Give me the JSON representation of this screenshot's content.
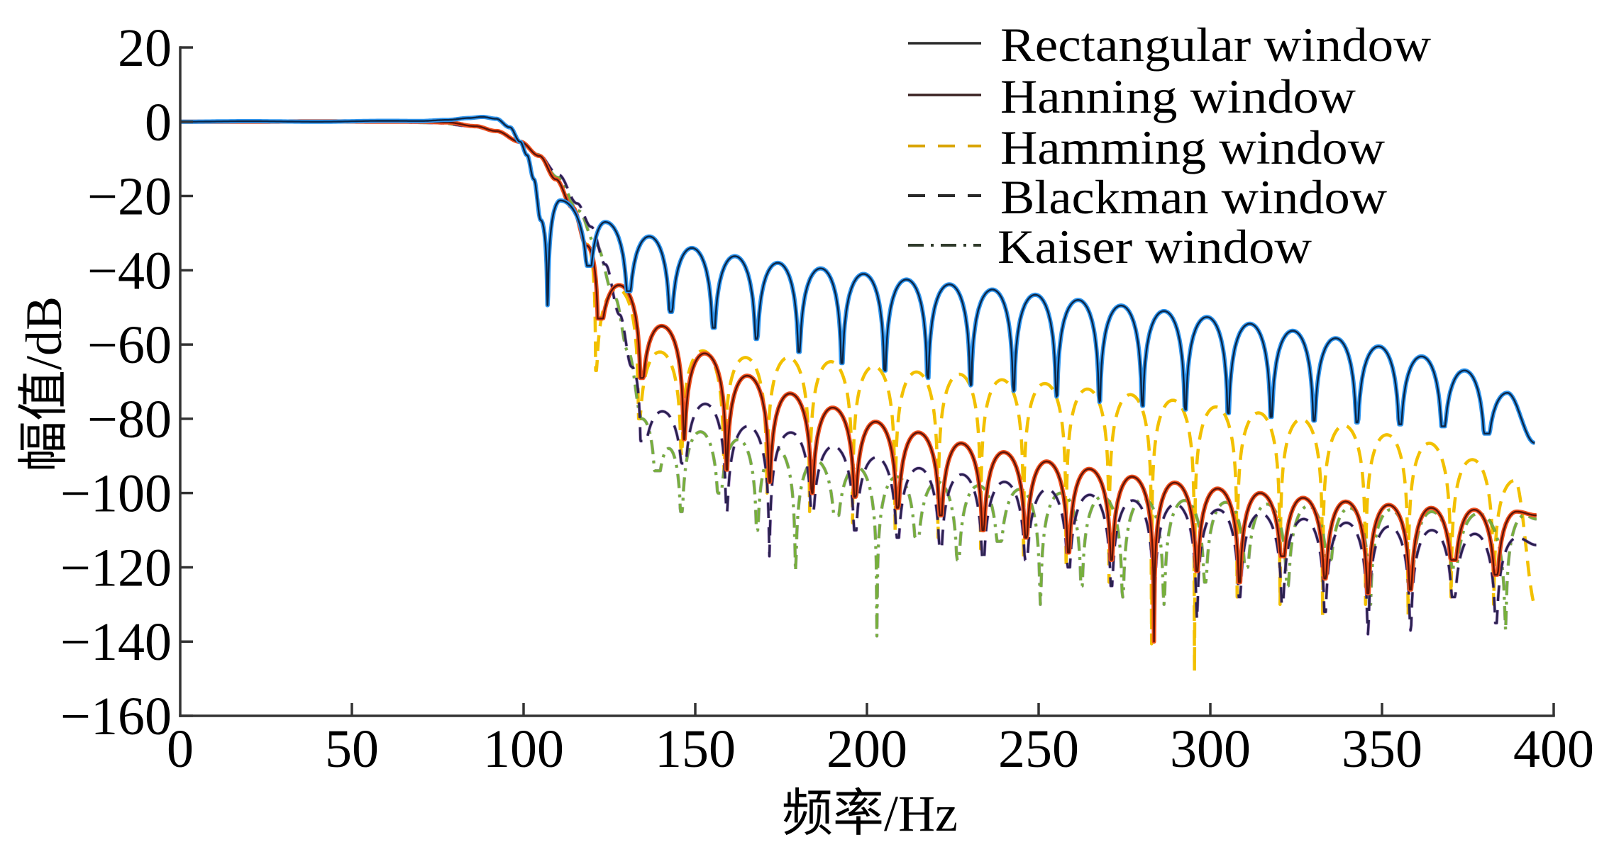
{
  "chart_data": {
    "type": "line",
    "xlabel": "频率/Hz",
    "ylabel": "幅值/dB",
    "xlim": [
      0,
      400
    ],
    "ylim": [
      -160,
      20
    ],
    "xticks": [
      0,
      50,
      100,
      150,
      200,
      250,
      300,
      350,
      400
    ],
    "xticklabels": [
      "0",
      "50",
      "100",
      "150",
      "200",
      "250",
      "300",
      "350",
      "400"
    ],
    "yticks": [
      20,
      0,
      -20,
      -40,
      -60,
      -80,
      -100,
      -120,
      -140,
      -160
    ],
    "yticklabels": [
      "20",
      "0",
      "−20",
      "−40",
      "−60",
      "−80",
      "−100",
      "−120",
      "−140",
      "−160"
    ],
    "grid": false,
    "legend_position": "top-right",
    "series": [
      {
        "name": "Rectangular window",
        "color": "#2f95ee",
        "core_color": "#0b2545",
        "legend_color": "#2a2a2a",
        "x": [
          0,
          20,
          40,
          60,
          70,
          78,
          84,
          88,
          92,
          96,
          99,
          101,
          103,
          105,
          107,
          110.7,
          119.0,
          123.8,
          130.5,
          136.6,
          142.8,
          149.0,
          155.3,
          161.5,
          167.8,
          174.0,
          180.2,
          186.5,
          192.7,
          199.0,
          205.2,
          211.5,
          217.7,
          224.0,
          230.2,
          236.5,
          242.7,
          249.0,
          255.2,
          261.5,
          267.7,
          274.0,
          280.2,
          286.5,
          292.7,
          299.0,
          305.2,
          311.5,
          317.7,
          324.0,
          330.2,
          336.5,
          342.7,
          349.0,
          355.2,
          361.5,
          367.7,
          374.0,
          380.2,
          386.5,
          394.5
        ],
        "y": [
          0,
          0.15,
          0,
          0.25,
          0.2,
          0.5,
          1.0,
          1.3,
          0.8,
          -1.5,
          -5.4,
          -9,
          -15.5,
          -26.5,
          -49.4,
          -21.2,
          -38.8,
          -27.0,
          -45.6,
          -30.9,
          -51.2,
          -34.0,
          -55.5,
          -36.2,
          -58.5,
          -38.0,
          -62.0,
          -39.5,
          -65.0,
          -41.0,
          -67.0,
          -42.5,
          -69.0,
          -43.8,
          -71.0,
          -45.2,
          -72.5,
          -46.6,
          -74.0,
          -48.0,
          -75.5,
          -49.5,
          -76.5,
          -51.0,
          -77.5,
          -52.6,
          -78.5,
          -54.4,
          -79.5,
          -56.3,
          -80.5,
          -58.3,
          -81.0,
          -60.5,
          -81.5,
          -63.2,
          -82.0,
          -67.0,
          -84.0,
          -73.0,
          -86.5
        ]
      },
      {
        "name": "Hanning window",
        "color": "#f0501e",
        "core_color": "#5c1408",
        "legend_color": "#3a2222",
        "x": [
          0,
          20,
          40,
          60,
          70,
          78,
          86,
          92,
          99,
          104.6,
          109.4,
          114.3,
          118.4,
          121.8,
          127.8,
          134.2,
          140.2,
          146.7,
          152.7,
          159.1,
          165.1,
          171.6,
          177.6,
          184.0,
          190.0,
          196.5,
          202.5,
          208.9,
          214.9,
          221.4,
          227.4,
          233.8,
          239.8,
          246.3,
          252.3,
          258.7,
          264.7,
          271.2,
          277.2,
          283.6,
          289.6,
          296.1,
          302.1,
          308.5,
          314.5,
          321.0,
          327.0,
          333.4,
          339.4,
          345.9,
          351.9,
          358.3,
          364.3,
          370.8,
          376.8,
          383.2,
          389.2,
          395
        ],
        "y": [
          0,
          0,
          0.1,
          0,
          0,
          -0.2,
          -1.2,
          -2.5,
          -5.4,
          -9.2,
          -15.5,
          -23.1,
          -33.4,
          -53,
          -44,
          -69,
          -55,
          -85.5,
          -62.4,
          -93.7,
          -68.4,
          -97,
          -73.2,
          -100,
          -77,
          -101,
          -80.8,
          -104,
          -83.7,
          -106,
          -86.6,
          -110,
          -89,
          -112,
          -91.5,
          -116,
          -93.5,
          -118,
          -95.6,
          -140,
          -97.2,
          -121,
          -98.8,
          -124,
          -100,
          -117,
          -101.3,
          -123,
          -102.3,
          -127,
          -103.2,
          -126,
          -104,
          -118,
          -104.5,
          -122,
          -105,
          -106
        ]
      },
      {
        "name": "Hamming window",
        "color": "#f2c000",
        "core_color": "#e0a400",
        "legend_color": "#d9a400",
        "x": [
          0,
          20,
          40,
          60,
          70,
          78,
          86,
          92,
          99,
          104.6,
          109.4,
          114.3,
          118.4,
          121.0,
          127.3,
          133.5,
          139.7,
          146.0,
          152.2,
          158.4,
          164.6,
          170.9,
          177.1,
          183.3,
          189.5,
          195.8,
          202.0,
          208.2,
          214.4,
          220.7,
          226.9,
          233.1,
          239.3,
          245.6,
          251.8,
          258.0,
          264.2,
          270.5,
          276.7,
          282.9,
          289.1,
          295.4,
          301.6,
          307.8,
          314.0,
          320.3,
          326.5,
          332.7,
          338.9,
          345.2,
          351.4,
          357.6,
          363.8,
          370.1,
          376.3,
          382.5,
          388.7,
          395
        ],
        "y": [
          0,
          0,
          0.1,
          0,
          0,
          -0.2,
          -1.2,
          -2.5,
          -5.4,
          -9.2,
          -15.5,
          -23.1,
          -33.0,
          -67,
          -45,
          -80,
          -62,
          -90,
          -61.7,
          -95,
          -63.5,
          -100,
          -63.5,
          -105,
          -64.6,
          -108,
          -65.9,
          -110,
          -67.4,
          -112,
          -68,
          -115,
          -69.5,
          -118,
          -70.5,
          -120,
          -72,
          -124,
          -73.5,
          -140.6,
          -75,
          -148,
          -76.8,
          -128,
          -78.4,
          -130,
          -80.1,
          -133,
          -81.8,
          -130,
          -84.3,
          -133,
          -86.6,
          -128,
          -91,
          -130,
          -96.6,
          -131
        ]
      },
      {
        "name": "Blackman window",
        "color": "#2b2150",
        "core_color": "#7a3fb0",
        "legend_color": "#2a2a2a",
        "x": [
          0,
          20,
          40,
          60,
          75,
          85,
          92,
          99,
          104,
          110.2,
          115.6,
          119.7,
          123.8,
          128,
          131.5,
          134.2,
          140.4,
          146.7,
          152.9,
          159.1,
          165.3,
          171.6,
          177.8,
          184.0,
          190.2,
          196.5,
          202.7,
          208.9,
          215.1,
          221.4,
          227.6,
          233.8,
          240.0,
          246.3,
          252.5,
          258.7,
          264.9,
          271.2,
          277.4,
          283.6,
          289.8,
          296.1,
          302.3,
          308.5,
          314.7,
          321.0,
          327.2,
          333.4,
          339.6,
          345.9,
          352.1,
          358.3,
          364.5,
          370.8,
          377.0,
          383.2,
          389.4,
          395
        ],
        "y": [
          0,
          0,
          0,
          0,
          -0.3,
          -1.2,
          -2.5,
          -5.4,
          -8.6,
          -14.3,
          -22,
          -28.3,
          -38.4,
          -52,
          -66,
          -86,
          -78,
          -92,
          -76,
          -105,
          -82,
          -117,
          -83.7,
          -105,
          -87.4,
          -110,
          -90.4,
          -112,
          -93.3,
          -115,
          -95,
          -118,
          -97,
          -118,
          -99,
          -120,
          -100.5,
          -125,
          -102,
          -140,
          -103,
          -134,
          -104.5,
          -128,
          -105.5,
          -130,
          -107,
          -132,
          -108,
          -138,
          -109,
          -137,
          -110,
          -128,
          -111,
          -135,
          -112,
          -114
        ]
      },
      {
        "name": "Kaiser window",
        "color": "#76b03a",
        "core_color": "#3a4a2a",
        "legend_color": "#2f3a2a",
        "x": [
          0,
          20,
          40,
          60,
          75,
          85,
          92,
          99,
          104,
          110,
          116,
          121,
          126.6,
          130.5,
          134.5,
          138.6,
          142.3,
          146.0,
          151.5,
          157.0,
          162.5,
          168.0,
          173.6,
          179.2,
          185.0,
          191.0,
          197.0,
          202.9,
          208.7,
          214.5,
          220.5,
          226.5,
          232.5,
          238.5,
          244.5,
          250.5,
          256.5,
          262.5,
          268.5,
          274.5,
          280.5,
          286.5,
          292.5,
          298.5,
          304.5,
          310.5,
          316.5,
          322.5,
          328.5,
          334.5,
          340.5,
          346.5,
          352.5,
          358.5,
          364.5,
          371.0,
          378.0,
          386.0,
          391.5,
          395
        ],
        "y": [
          0,
          0,
          0,
          0,
          -0.3,
          -1.2,
          -2.5,
          -5.4,
          -8.8,
          -15,
          -24,
          -33,
          -47.4,
          -62,
          -80,
          -94,
          -88,
          -105,
          -83.5,
          -100,
          -85.6,
          -110,
          -88,
          -121,
          -91.2,
          -106,
          -93,
          -138.5,
          -95.6,
          -112,
          -97,
          -118,
          -98,
          -113,
          -99,
          -130,
          -100,
          -125,
          -101,
          -128,
          -101.5,
          -130,
          -102,
          -124,
          -102.5,
          -120,
          -103,
          -125,
          -103.5,
          -118,
          -104,
          -130,
          -104.5,
          -125,
          -105,
          -120,
          -105.5,
          -137,
          -106,
          -107
        ]
      }
    ]
  }
}
